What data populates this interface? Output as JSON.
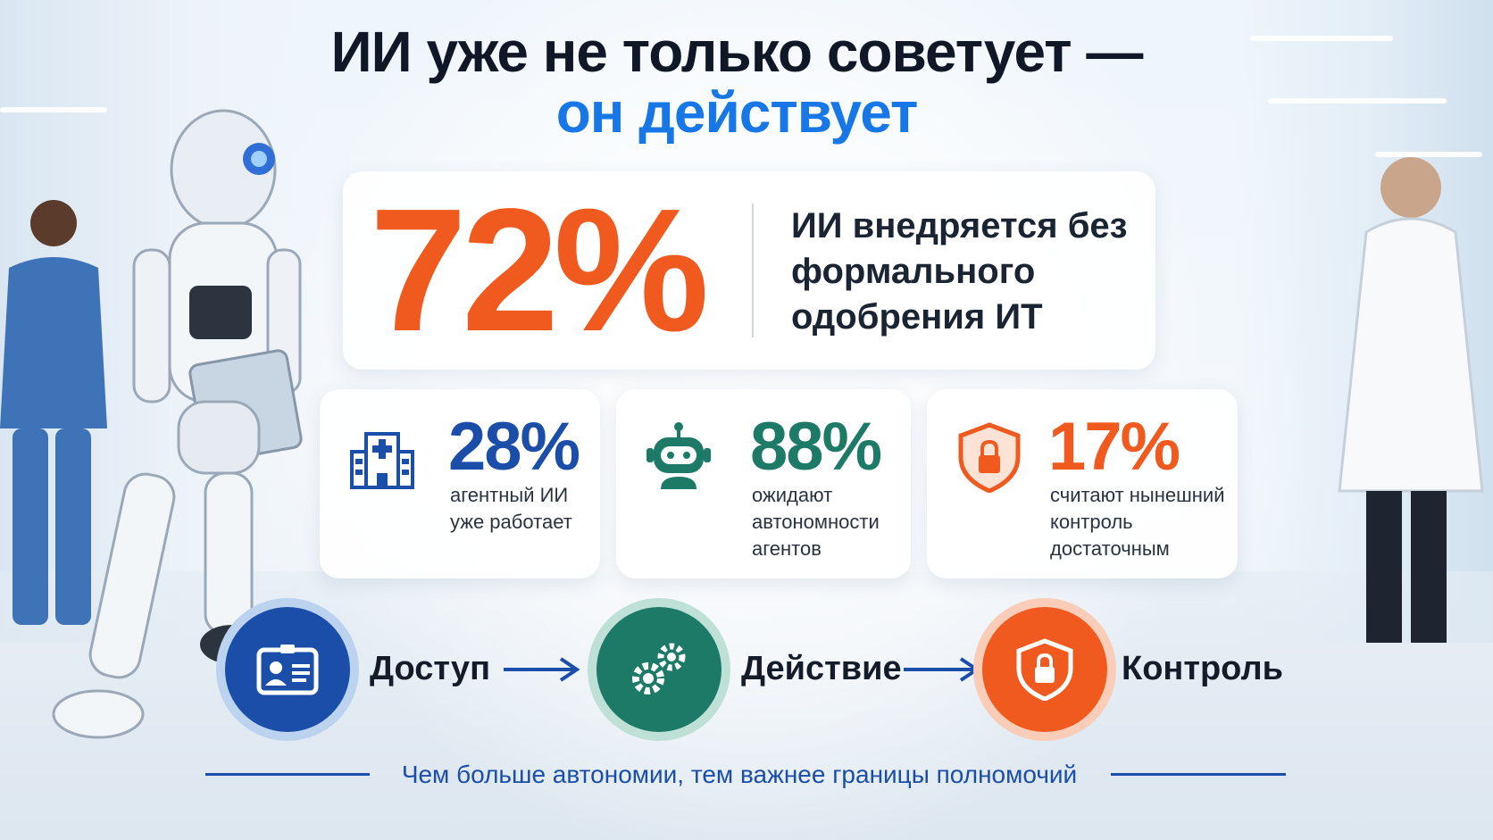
{
  "title": {
    "line1": "ИИ уже не только советует —",
    "line2": "он действует"
  },
  "hero": {
    "value": "72%",
    "text": "ИИ внедряется без формального одобрения ИТ"
  },
  "stats": [
    {
      "value": "28%",
      "text": "агентный ИИ уже работает",
      "icon": "hospital-icon",
      "color": "#1a4ea8"
    },
    {
      "value": "88%",
      "text": "ожидают автономности агентов",
      "icon": "robot-icon",
      "color": "#1d7a67"
    },
    {
      "value": "17%",
      "text": "считают нынешний контроль достаточным",
      "icon": "shield-lock-icon",
      "color": "#f05a1f"
    }
  ],
  "flow": [
    {
      "label": "Доступ",
      "icon": "id-card-icon",
      "color": "#1a4ea8"
    },
    {
      "label": "Действие",
      "icon": "gears-icon",
      "color": "#1d7a67"
    },
    {
      "label": "Контроль",
      "icon": "shield-lock-icon",
      "color": "#f05a1f"
    }
  ],
  "footer": "Чем больше автономии, тем важнее границы полномочий"
}
